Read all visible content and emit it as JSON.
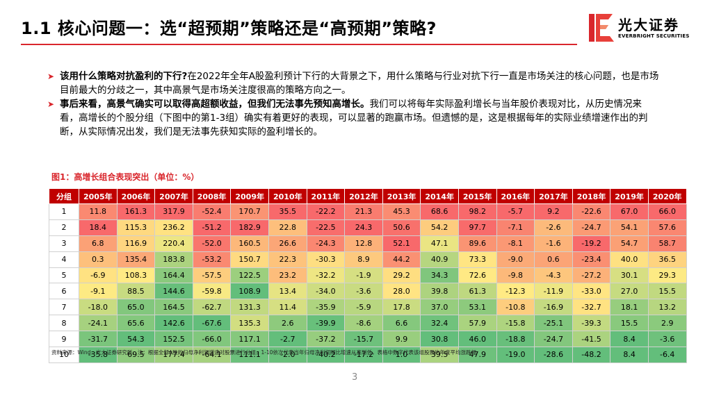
{
  "title": "1.1 核心问题一：选“超预期”策略还是“高预期”策略?",
  "logo": {
    "name_cn": "光大证券",
    "name_en": "EVERBRIGHT SECURITIES"
  },
  "bullets": [
    {
      "lead": "该用什么策略对抗盈利的下行?",
      "text": "在2022年全年A股盈利预计下行的大背景之下，用什么策略与行业对抗下行一直是市场关注的核心问题，也是市场目前最大的分歧之一，其中高景气是市场关注度很高的策略方向之一。"
    },
    {
      "lead": "事后来看，高景气确实可以取得高超额收益，但我们无法事先预知高增长。",
      "text": "我们可以将每年实际盈利增长与当年股价表现对比，从历史情况来看，高增长的个股分组（下图中的第1-3组）确实有着更好的表现，可以显著的跑赢市场。但遗憾的是，这是根据每年的实际业绩增速作出的判断，从实际情况出发，我们是无法事先获知实际的盈利增长的。"
    }
  ],
  "figure_title": "图1：高增长组合表现突出（单位：%）",
  "table": {
    "headers": [
      "分组",
      "2005年",
      "2006年",
      "2007年",
      "2008年",
      "2009年",
      "2010年",
      "2011年",
      "2012年",
      "2013年",
      "2014年",
      "2015年",
      "2016年",
      "2017年",
      "2018年",
      "2019年",
      "2020年"
    ],
    "rows": [
      [
        "1",
        "11.8",
        "161.3",
        "317.9",
        "-52.4",
        "170.7",
        "35.5",
        "-22.2",
        "21.3",
        "45.3",
        "68.6",
        "98.2",
        "-5.7",
        "9.2",
        "-22.6",
        "67.0",
        "66.0"
      ],
      [
        "2",
        "18.4",
        "115.3",
        "236.2",
        "-51.2",
        "182.9",
        "22.8",
        "-22.5",
        "24.3",
        "50.6",
        "54.2",
        "97.7",
        "-7.1",
        "-2.6",
        "-24.7",
        "54.1",
        "57.6"
      ],
      [
        "3",
        "6.8",
        "116.9",
        "220.4",
        "-52.0",
        "160.5",
        "26.6",
        "-24.3",
        "12.8",
        "52.1",
        "47.1",
        "89.6",
        "-8.1",
        "-1.6",
        "-19.2",
        "54.7",
        "58.7"
      ],
      [
        "4",
        "0.3",
        "135.4",
        "183.8",
        "-53.2",
        "150.7",
        "22.3",
        "-30.3",
        "8.9",
        "44.2",
        "40.9",
        "73.3",
        "-9.0",
        "0.6",
        "-23.4",
        "40.0",
        "36.5"
      ],
      [
        "5",
        "-6.9",
        "108.3",
        "164.4",
        "-57.5",
        "122.5",
        "23.2",
        "-32.2",
        "-1.9",
        "29.2",
        "34.3",
        "72.6",
        "-9.8",
        "-4.3",
        "-27.2",
        "30.1",
        "29.3"
      ],
      [
        "6",
        "-9.1",
        "88.5",
        "144.6",
        "-59.8",
        "108.9",
        "13.4",
        "-34.0",
        "-3.6",
        "28.0",
        "39.8",
        "61.3",
        "-12.3",
        "-11.9",
        "-33.0",
        "27.0",
        "15.5"
      ],
      [
        "7",
        "-18.0",
        "65.0",
        "164.5",
        "-62.7",
        "131.3",
        "11.4",
        "-35.9",
        "-5.9",
        "17.8",
        "37.0",
        "53.1",
        "-10.8",
        "-16.9",
        "-32.7",
        "18.1",
        "13.2"
      ],
      [
        "8",
        "-24.1",
        "65.6",
        "142.6",
        "-67.6",
        "135.3",
        "2.6",
        "-39.9",
        "-8.6",
        "6.6",
        "32.4",
        "57.9",
        "-15.8",
        "-25.1",
        "-39.3",
        "15.5",
        "2.9"
      ],
      [
        "9",
        "-31.7",
        "54.3",
        "152.5",
        "-66.0",
        "117.1",
        "-2.7",
        "-37.2",
        "-15.7",
        "9.9",
        "30.8",
        "46.0",
        "-18.8",
        "-24.7",
        "-41.5",
        "8.4",
        "-3.6"
      ],
      [
        "10",
        "-35.8",
        "69.5",
        "177.4",
        "-64.1",
        "111.1",
        "-2.0",
        "-40.2",
        "-17.2",
        "1.0",
        "39.5",
        "47.9",
        "-19.0",
        "-28.6",
        "-48.2",
        "8.4",
        "-6.4"
      ]
    ]
  },
  "heatmap_colors": {
    "high": "#f8696b",
    "mid": "#ffeb84",
    "low": "#63be7b"
  },
  "source": "资料来源：Wind，光大证券研究所。注：根据全部A股的归母净利润增速对股票进行分组，1-10依次代表当年归母净利润同比增速从高到低，表格中数字代表该组股票的年度平均涨跌幅",
  "page_number": "3"
}
